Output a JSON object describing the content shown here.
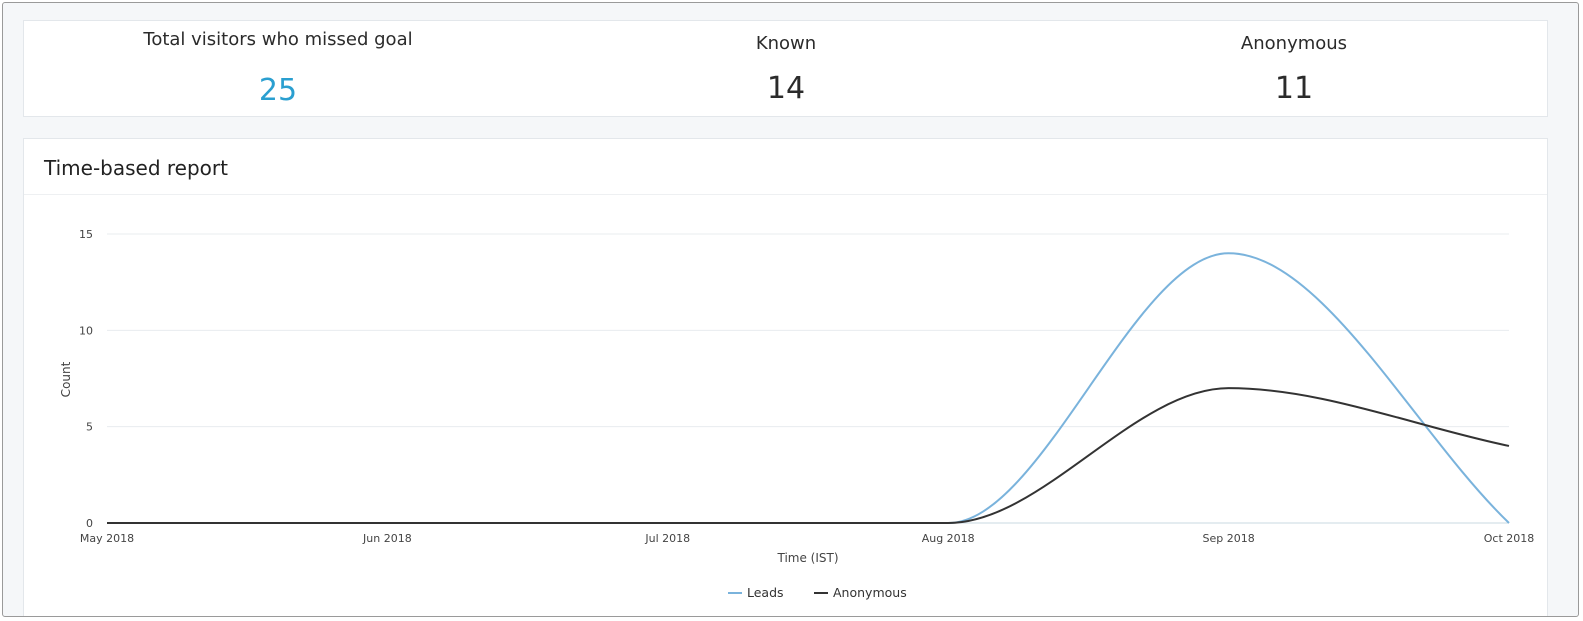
{
  "summary": {
    "total": {
      "label": "Total visitors who missed goal",
      "value": "25",
      "color": "#2a9fd0"
    },
    "known": {
      "label": "Known",
      "value": "14"
    },
    "anonymous": {
      "label": "Anonymous",
      "value": "11"
    }
  },
  "report": {
    "title": "Time-based report"
  },
  "chart_data": {
    "type": "line",
    "x": [
      "May 2018",
      "Jun 2018",
      "Jul 2018",
      "Aug 2018",
      "Sep 2018",
      "Oct 2018"
    ],
    "series": [
      {
        "name": "Leads",
        "values": [
          0,
          0,
          0,
          0,
          14,
          0
        ],
        "color": "#7ab3dc"
      },
      {
        "name": "Anonymous",
        "values": [
          0,
          0,
          0,
          0,
          7,
          4
        ],
        "color": "#333333"
      }
    ],
    "xlabel": "Time (IST)",
    "ylabel": "Count",
    "ylim": [
      0,
      15
    ],
    "yticks": [
      0,
      5,
      10,
      15
    ],
    "grid": true,
    "curve": "smooth",
    "legend": "bottom-center"
  }
}
